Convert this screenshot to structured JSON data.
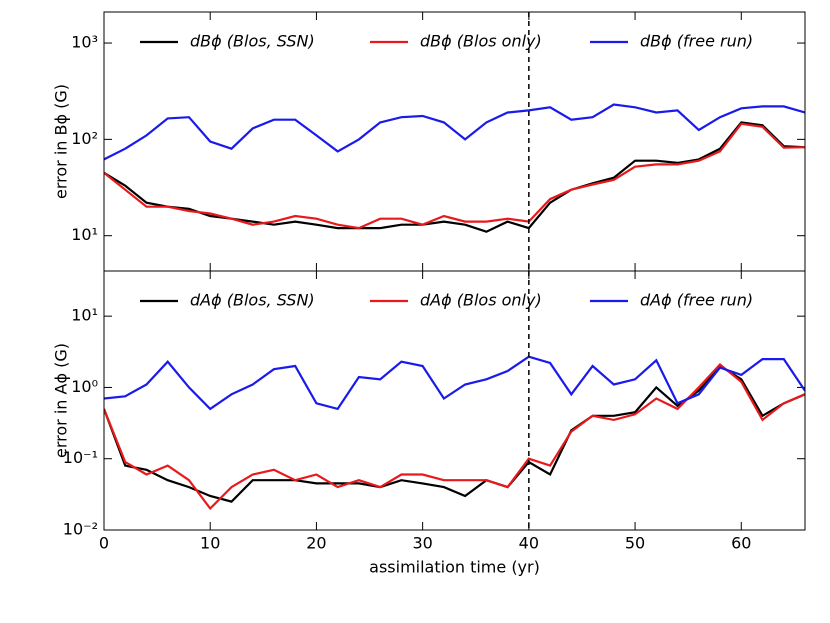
{
  "chart_data": [
    {
      "type": "line",
      "ylabel": "error in Bϕ (G)",
      "log_y": true,
      "legend": "upper center",
      "vline": 40,
      "xlim": [
        0,
        66
      ],
      "xticks": [
        0,
        10,
        20,
        30,
        40,
        50,
        60
      ],
      "ylim": [
        4.3,
        2100
      ],
      "yticks": [
        {
          "value": 10,
          "label": "10¹"
        },
        {
          "value": 100,
          "label": "10²"
        },
        {
          "value": 1000,
          "label": "10³"
        }
      ],
      "x": [
        0,
        2,
        4,
        6,
        8,
        10,
        12,
        14,
        16,
        18,
        20,
        22,
        24,
        26,
        28,
        30,
        32,
        34,
        36,
        38,
        40,
        42,
        44,
        46,
        48,
        50,
        52,
        54,
        56,
        58,
        60,
        62,
        64,
        66
      ],
      "series": [
        {
          "name": "dBϕ (Blos, SSN)",
          "color": "#000000",
          "values": [
            45,
            33,
            22,
            20,
            19,
            16,
            15,
            14,
            13,
            14,
            13,
            12,
            12,
            12,
            13,
            13,
            14,
            13,
            11,
            14,
            12,
            22,
            30,
            35,
            40,
            60,
            60,
            57,
            62,
            80,
            150,
            140,
            85,
            83
          ]
        },
        {
          "name": "dBϕ (Blos only)",
          "color": "#e8191c",
          "values": [
            45,
            30,
            20,
            20,
            18,
            17,
            15,
            13,
            14,
            16,
            15,
            13,
            12,
            15,
            15,
            13,
            16,
            14,
            14,
            15,
            14,
            24,
            30,
            34,
            38,
            52,
            55,
            55,
            60,
            75,
            145,
            135,
            82,
            83
          ]
        },
        {
          "name": "dBϕ (free run)",
          "color": "#1a1aeb",
          "values": [
            62,
            80,
            110,
            165,
            170,
            95,
            80,
            130,
            160,
            160,
            110,
            75,
            100,
            150,
            170,
            175,
            150,
            100,
            150,
            190,
            200,
            215,
            160,
            170,
            230,
            215,
            190,
            200,
            125,
            170,
            210,
            220,
            220,
            190
          ]
        }
      ]
    },
    {
      "type": "line",
      "ylabel": "error in Aϕ (G)",
      "xlabel": "assimilation time (yr)",
      "log_y": true,
      "legend": "upper center",
      "vline": 40,
      "xlim": [
        0,
        66
      ],
      "xticks": [
        0,
        10,
        20,
        30,
        40,
        50,
        60
      ],
      "ylim": [
        0.01,
        43
      ],
      "yticks": [
        {
          "value": 0.01,
          "label": "10⁻²"
        },
        {
          "value": 0.1,
          "label": "10⁻¹"
        },
        {
          "value": 1,
          "label": "10⁰"
        },
        {
          "value": 10,
          "label": "10¹"
        }
      ],
      "x": [
        0,
        2,
        4,
        6,
        8,
        10,
        12,
        14,
        16,
        18,
        20,
        22,
        24,
        26,
        28,
        30,
        32,
        34,
        36,
        38,
        40,
        42,
        44,
        46,
        48,
        50,
        52,
        54,
        56,
        58,
        60,
        62,
        64,
        66
      ],
      "series": [
        {
          "name": "dAϕ (Blos, SSN)",
          "color": "#000000",
          "values": [
            0.5,
            0.08,
            0.07,
            0.05,
            0.04,
            0.03,
            0.025,
            0.05,
            0.05,
            0.05,
            0.045,
            0.045,
            0.045,
            0.04,
            0.05,
            0.045,
            0.04,
            0.03,
            0.05,
            0.04,
            0.09,
            0.06,
            0.25,
            0.4,
            0.4,
            0.45,
            1.0,
            0.55,
            0.9,
            2.0,
            1.3,
            0.4,
            0.6,
            0.8
          ]
        },
        {
          "name": "dAϕ (Blos only)",
          "color": "#e8191c",
          "values": [
            0.5,
            0.09,
            0.06,
            0.08,
            0.05,
            0.02,
            0.04,
            0.06,
            0.07,
            0.05,
            0.06,
            0.04,
            0.05,
            0.04,
            0.06,
            0.06,
            0.05,
            0.05,
            0.05,
            0.04,
            0.1,
            0.08,
            0.24,
            0.4,
            0.35,
            0.42,
            0.7,
            0.5,
            1.0,
            2.1,
            1.2,
            0.35,
            0.6,
            0.8
          ]
        },
        {
          "name": "dAϕ (free run)",
          "color": "#1a1aeb",
          "values": [
            0.7,
            0.75,
            1.1,
            2.3,
            1.0,
            0.5,
            0.8,
            1.1,
            1.8,
            2.0,
            0.6,
            0.5,
            1.4,
            1.3,
            2.3,
            2.0,
            0.7,
            1.1,
            1.3,
            1.7,
            2.7,
            2.2,
            0.8,
            2.0,
            1.1,
            1.3,
            2.4,
            0.6,
            0.8,
            1.9,
            1.5,
            2.5,
            2.5,
            0.9
          ]
        }
      ]
    }
  ]
}
